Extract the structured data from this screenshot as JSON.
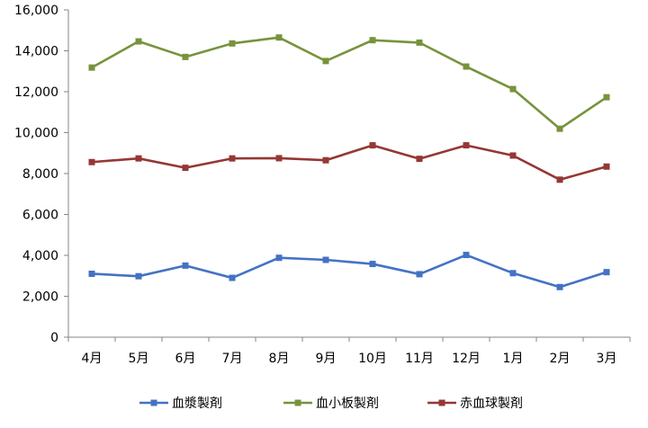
{
  "chart_data": {
    "type": "line",
    "categories": [
      "4月",
      "5月",
      "6月",
      "7月",
      "8月",
      "9月",
      "10月",
      "11月",
      "12月",
      "1月",
      "2月",
      "3月"
    ],
    "ylim": [
      0,
      16000
    ],
    "yticks": [
      "0",
      "2,000",
      "4,000",
      "6,000",
      "8,000",
      "10,000",
      "12,000",
      "14,000",
      "16,000"
    ],
    "grid": false,
    "legend_position": "bottom",
    "series": [
      {
        "name": "血漿製剤",
        "color": "#4472c4",
        "values": [
          3100,
          2980,
          3500,
          2900,
          3880,
          3780,
          3580,
          3080,
          4020,
          3130,
          2450,
          3180
        ]
      },
      {
        "name": "血小板製剤",
        "color": "#77933c",
        "values": [
          13180,
          14460,
          13700,
          14360,
          14650,
          13500,
          14520,
          14400,
          13230,
          12130,
          10190,
          11730
        ]
      },
      {
        "name": "赤血球製剤",
        "color": "#953735",
        "values": [
          8560,
          8740,
          8280,
          8740,
          8750,
          8650,
          9380,
          8720,
          9380,
          8880,
          7700,
          8340
        ]
      }
    ]
  }
}
